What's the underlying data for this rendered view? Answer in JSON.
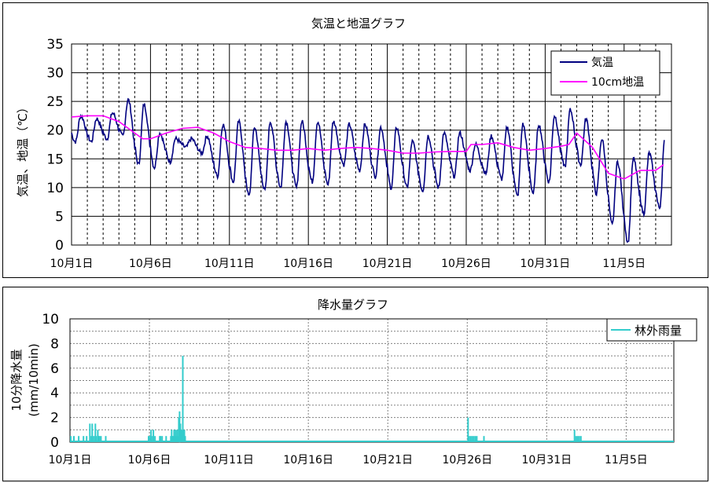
{
  "charts": {
    "temperature": {
      "title": "気温と地温グラフ",
      "ylabel": "気温、地温（℃）",
      "legend": [
        {
          "name": "気温",
          "color": "#000080"
        },
        {
          "name": "10cm地温",
          "color": "#ff00ff"
        }
      ]
    },
    "precipitation": {
      "title": "降水量グラフ",
      "ylabel_line1": "10分降水量",
      "ylabel_line2": "(mm/10min)",
      "legend": [
        {
          "name": "林外雨量",
          "color": "#33cccc"
        }
      ]
    }
  },
  "chart_data": [
    {
      "type": "line",
      "title": "気温と地温グラフ",
      "xlabel": "",
      "ylabel": "気温、地温（℃）",
      "x_tick_labels": [
        "10月1日",
        "10月6日",
        "10月11日",
        "10月16日",
        "10月21日",
        "10月26日",
        "10月31日",
        "11月5日"
      ],
      "x_range_days": [
        0,
        38
      ],
      "ylim": [
        0,
        35
      ],
      "y_ticks": [
        0,
        5,
        10,
        15,
        20,
        25,
        30,
        35
      ],
      "grid": true,
      "legend_position": "top-right",
      "series": [
        {
          "name": "気温",
          "color": "#000080",
          "daily_max": [
            22.5,
            22,
            23,
            25.3,
            24.5,
            19.5,
            18.5,
            18.5,
            19,
            21,
            21.5,
            20.5,
            21.5,
            21.5,
            21.5,
            21.5,
            21.5,
            21,
            21,
            20.5,
            20.5,
            18,
            19,
            19.5,
            19.5,
            17.5,
            19,
            20.5,
            21,
            21,
            22.5,
            23.5,
            22,
            18.5,
            14.5,
            15,
            16,
            18.5
          ],
          "daily_min": [
            18,
            18,
            18.5,
            19,
            14,
            13.5,
            14.5,
            17,
            16,
            12,
            11,
            8.5,
            9.5,
            10,
            10,
            11,
            10.5,
            14,
            13,
            12,
            10,
            10,
            9.5,
            10,
            12,
            13,
            12.5,
            11.5,
            8.5,
            9,
            11,
            13.5,
            14,
            9,
            3.5,
            0.5,
            5.5,
            6.5
          ]
        },
        {
          "name": "10cm地温",
          "color": "#ff00ff",
          "days": [
            0,
            1,
            2,
            2.5,
            3,
            4,
            4.5,
            5,
            6,
            7,
            8,
            9,
            10,
            11,
            12,
            13,
            14,
            15,
            16,
            17,
            18,
            19,
            20,
            21,
            22,
            23,
            24,
            25,
            25.3,
            26,
            27,
            28,
            29,
            30,
            31,
            31.5,
            32,
            33,
            34,
            35,
            36,
            37,
            37.5
          ],
          "values": [
            22.3,
            22.5,
            22.5,
            22,
            21.5,
            19.5,
            18.5,
            18.5,
            19.5,
            20.3,
            20.5,
            19.5,
            18,
            17,
            16.8,
            16.5,
            16.5,
            16.8,
            16.5,
            16.8,
            17,
            16.8,
            16.5,
            16,
            16,
            16.2,
            16.3,
            16.3,
            17.5,
            17.5,
            17.8,
            17,
            16.5,
            16.8,
            17.2,
            17.5,
            19.5,
            17,
            12.5,
            11.5,
            13,
            13,
            14
          ]
        }
      ]
    },
    {
      "type": "bar",
      "title": "降水量グラフ",
      "xlabel": "",
      "ylabel": "10分降水量 (mm/10min)",
      "x_tick_labels": [
        "10月1日",
        "10月6日",
        "10月11日",
        "10月16日",
        "10月21日",
        "10月26日",
        "10月31日",
        "11月5日"
      ],
      "x_range_days": [
        0,
        38
      ],
      "ylim": [
        0,
        10
      ],
      "y_ticks": [
        0,
        2,
        4,
        6,
        8,
        10
      ],
      "grid": true,
      "legend_position": "top-right",
      "series": [
        {
          "name": "林外雨量",
          "color": "#33cccc",
          "days": [
            0.0,
            0.2,
            0.5,
            0.8,
            1.0,
            1.2,
            1.3,
            1.35,
            1.45,
            1.55,
            1.6,
            1.7,
            1.75,
            1.8,
            1.9,
            2.2,
            4.9,
            5.0,
            5.05,
            5.15,
            5.2,
            5.3,
            5.6,
            5.65,
            5.75,
            6.0,
            6.3,
            6.35,
            6.4,
            6.45,
            6.5,
            6.55,
            6.6,
            6.65,
            6.7,
            6.75,
            6.8,
            6.85,
            6.9,
            6.95,
            7.0,
            7.05,
            7.1,
            7.15,
            7.2,
            25.0,
            25.05,
            25.15,
            25.25,
            25.35,
            25.45,
            25.55,
            26.0,
            31.7,
            31.8,
            31.9,
            32.0,
            32.1
          ],
          "values": [
            0.5,
            0.5,
            0.5,
            0.5,
            0.5,
            1.5,
            0.5,
            1.5,
            0.5,
            1.5,
            0.5,
            1.0,
            0.5,
            0.5,
            0.5,
            0.5,
            0.5,
            0.5,
            1.0,
            0.5,
            1.0,
            0.5,
            0.5,
            0.5,
            0.5,
            0.5,
            0.5,
            1.0,
            0.5,
            0.5,
            1.0,
            0.5,
            1.0,
            0.5,
            1.0,
            0.5,
            2.0,
            2.5,
            1.5,
            1.0,
            0.5,
            7.0,
            0.5,
            1.0,
            0.5,
            2.0,
            0.5,
            0.5,
            0.5,
            0.5,
            0.5,
            0.5,
            0.5,
            1.0,
            0.5,
            0.5,
            0.5,
            0.5
          ]
        }
      ]
    }
  ]
}
